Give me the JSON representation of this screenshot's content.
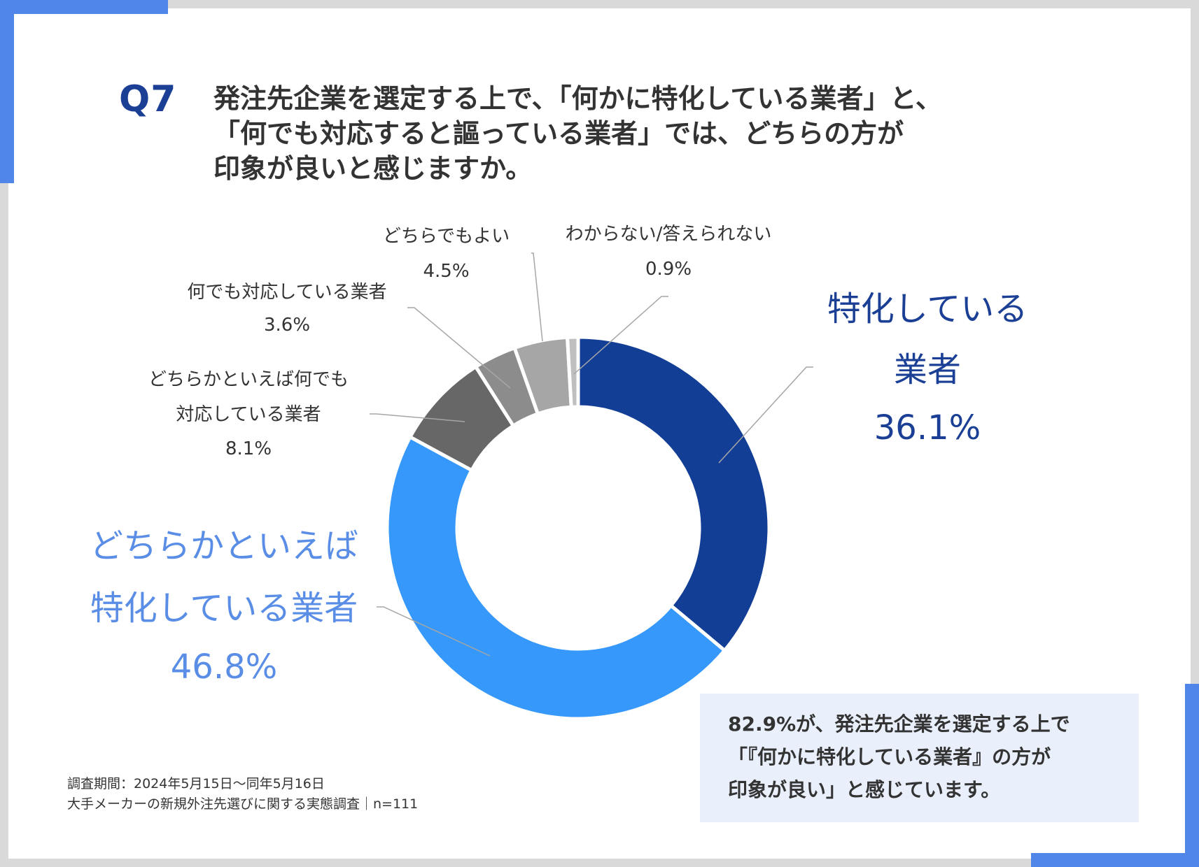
{
  "question": {
    "number": "Q7",
    "lines": [
      "発注先企業を選定する上で、「何かに特化している業者」と、",
      "「何でも対応すると謳っている業者」では、どちらの方が",
      "印象が良いと感じますか。"
    ]
  },
  "chart_data": {
    "type": "pie",
    "variant": "donut",
    "categories": [
      "特化している業者",
      "どちらかといえば特化している業者",
      "どちらかといえば何でも対応している業者",
      "何でも対応している業者",
      "どちらでもよい",
      "わからない/答えられない"
    ],
    "values": [
      36.1,
      46.8,
      8.1,
      3.6,
      4.5,
      0.9
    ],
    "colors": [
      "#133e96",
      "#3598fa",
      "#676767",
      "#8c8c8c",
      "#a6a6a6",
      "#bfbfbf"
    ],
    "start_angle_deg": 0,
    "direction": "clockwise"
  },
  "labels": {
    "tokka": {
      "line1": "特化している",
      "line2": "業者",
      "pct": "36.1%"
    },
    "dochiraka_tokka": {
      "line1": "どちらかといえば",
      "line2": "特化している業者",
      "pct": "46.8%"
    },
    "dochiraka_nandemo": {
      "line1": "どちらかといえば何でも",
      "line2": "対応している業者",
      "pct": "8.1%"
    },
    "nandemo": {
      "line1": "何でも対応している業者",
      "pct": "3.6%"
    },
    "dochirademo": {
      "line1": "どちらでもよい",
      "pct": "4.5%"
    },
    "wakaranai": {
      "line1": "わからない/答えられない",
      "pct": "0.9%"
    }
  },
  "summary": {
    "lines": [
      "82.9%が、発注先企業を選定する上で",
      "「『何かに特化している業者』の方が",
      "印象が良い」と感じています。"
    ]
  },
  "footnote": {
    "period": "調査期間：2024年5月15日〜同年5月16日",
    "survey": "大手メーカーの新規外注先選びに関する実態調査｜n=111"
  },
  "theme": {
    "accent": "#4f86e8",
    "dark_blue": "#1a3f95",
    "light_blue": "#5a8ee6"
  }
}
